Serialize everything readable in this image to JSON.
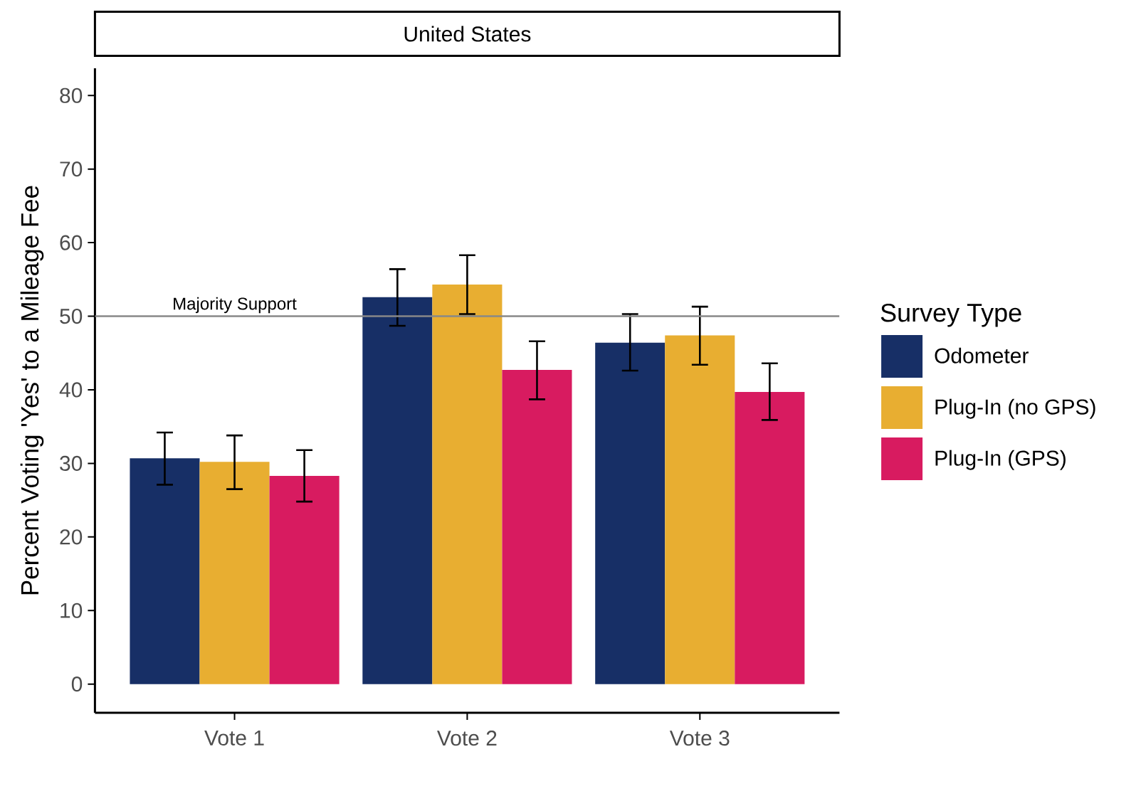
{
  "chart_data": {
    "type": "bar",
    "title": "United States",
    "ylabel": "Percent Voting 'Yes' to a Mileage Fee",
    "legend_title": "Survey Type",
    "categories": [
      "Vote 1",
      "Vote 2",
      "Vote 3"
    ],
    "series": [
      {
        "name": "Odometer",
        "color": "#172f66",
        "values": [
          30.7,
          52.6,
          46.4
        ],
        "errors": [
          [
            27.1,
            34.2
          ],
          [
            48.7,
            56.4
          ],
          [
            42.6,
            50.3
          ]
        ]
      },
      {
        "name": "Plug-In (no GPS)",
        "color": "#e8ae31",
        "values": [
          30.2,
          54.3,
          47.4
        ],
        "errors": [
          [
            26.5,
            33.8
          ],
          [
            50.3,
            58.3
          ],
          [
            43.4,
            51.3
          ]
        ]
      },
      {
        "name": "Plug-In (GPS)",
        "color": "#d81b60",
        "values": [
          28.3,
          42.7,
          39.7
        ],
        "errors": [
          [
            24.8,
            31.8
          ],
          [
            38.7,
            46.6
          ],
          [
            35.9,
            43.6
          ]
        ]
      }
    ],
    "ylim": [
      -3.9,
      83.7
    ],
    "yticks": [
      0,
      10,
      20,
      30,
      40,
      50,
      60,
      70,
      80
    ],
    "ref_lines": [
      {
        "axis": "y",
        "value": 50,
        "label": "Majority Support",
        "color": "#888888"
      }
    ],
    "grid": false,
    "legend": "right"
  }
}
